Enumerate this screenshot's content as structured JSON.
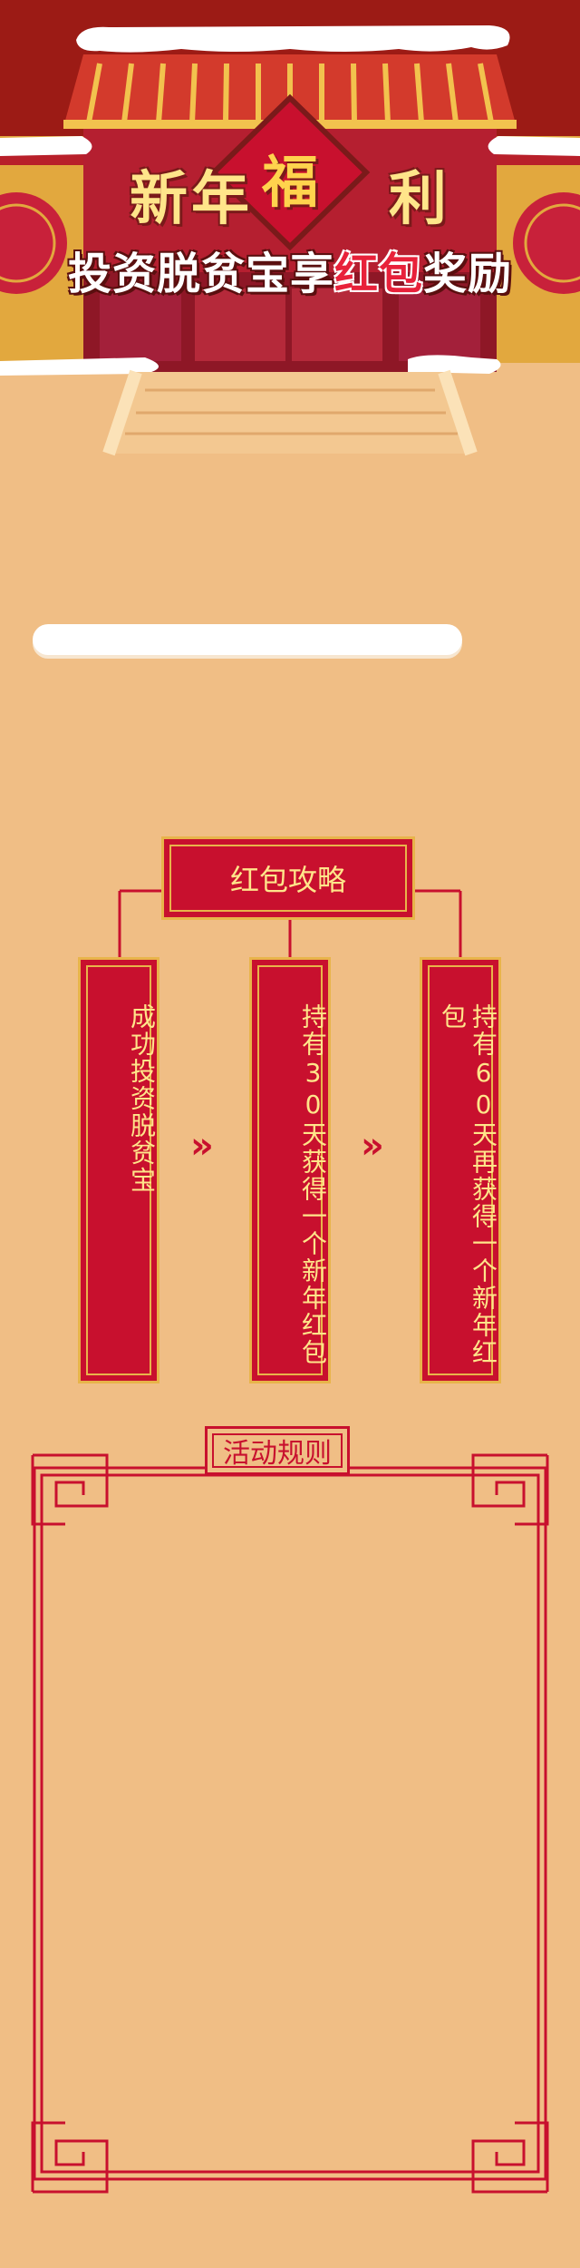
{
  "hero": {
    "title_part1": "新年",
    "fu": "福",
    "title_part2": "利",
    "subtitle_part1": "投资脱贫宝享",
    "subtitle_highlight": "红包",
    "subtitle_part2": "奖励"
  },
  "strategy": {
    "title": "红包攻略",
    "steps": [
      {
        "label": "成功投资脱贫宝"
      },
      {
        "label": "持有30天获得一个新年红包"
      },
      {
        "label": "持有60天再获得一个新年红包"
      }
    ]
  },
  "rules": {
    "title": "活动规则"
  },
  "colors": {
    "background": "#f0be85",
    "red": "#c8102e",
    "gold": "#e8b44a",
    "yellow_text": "#ffe58a"
  }
}
